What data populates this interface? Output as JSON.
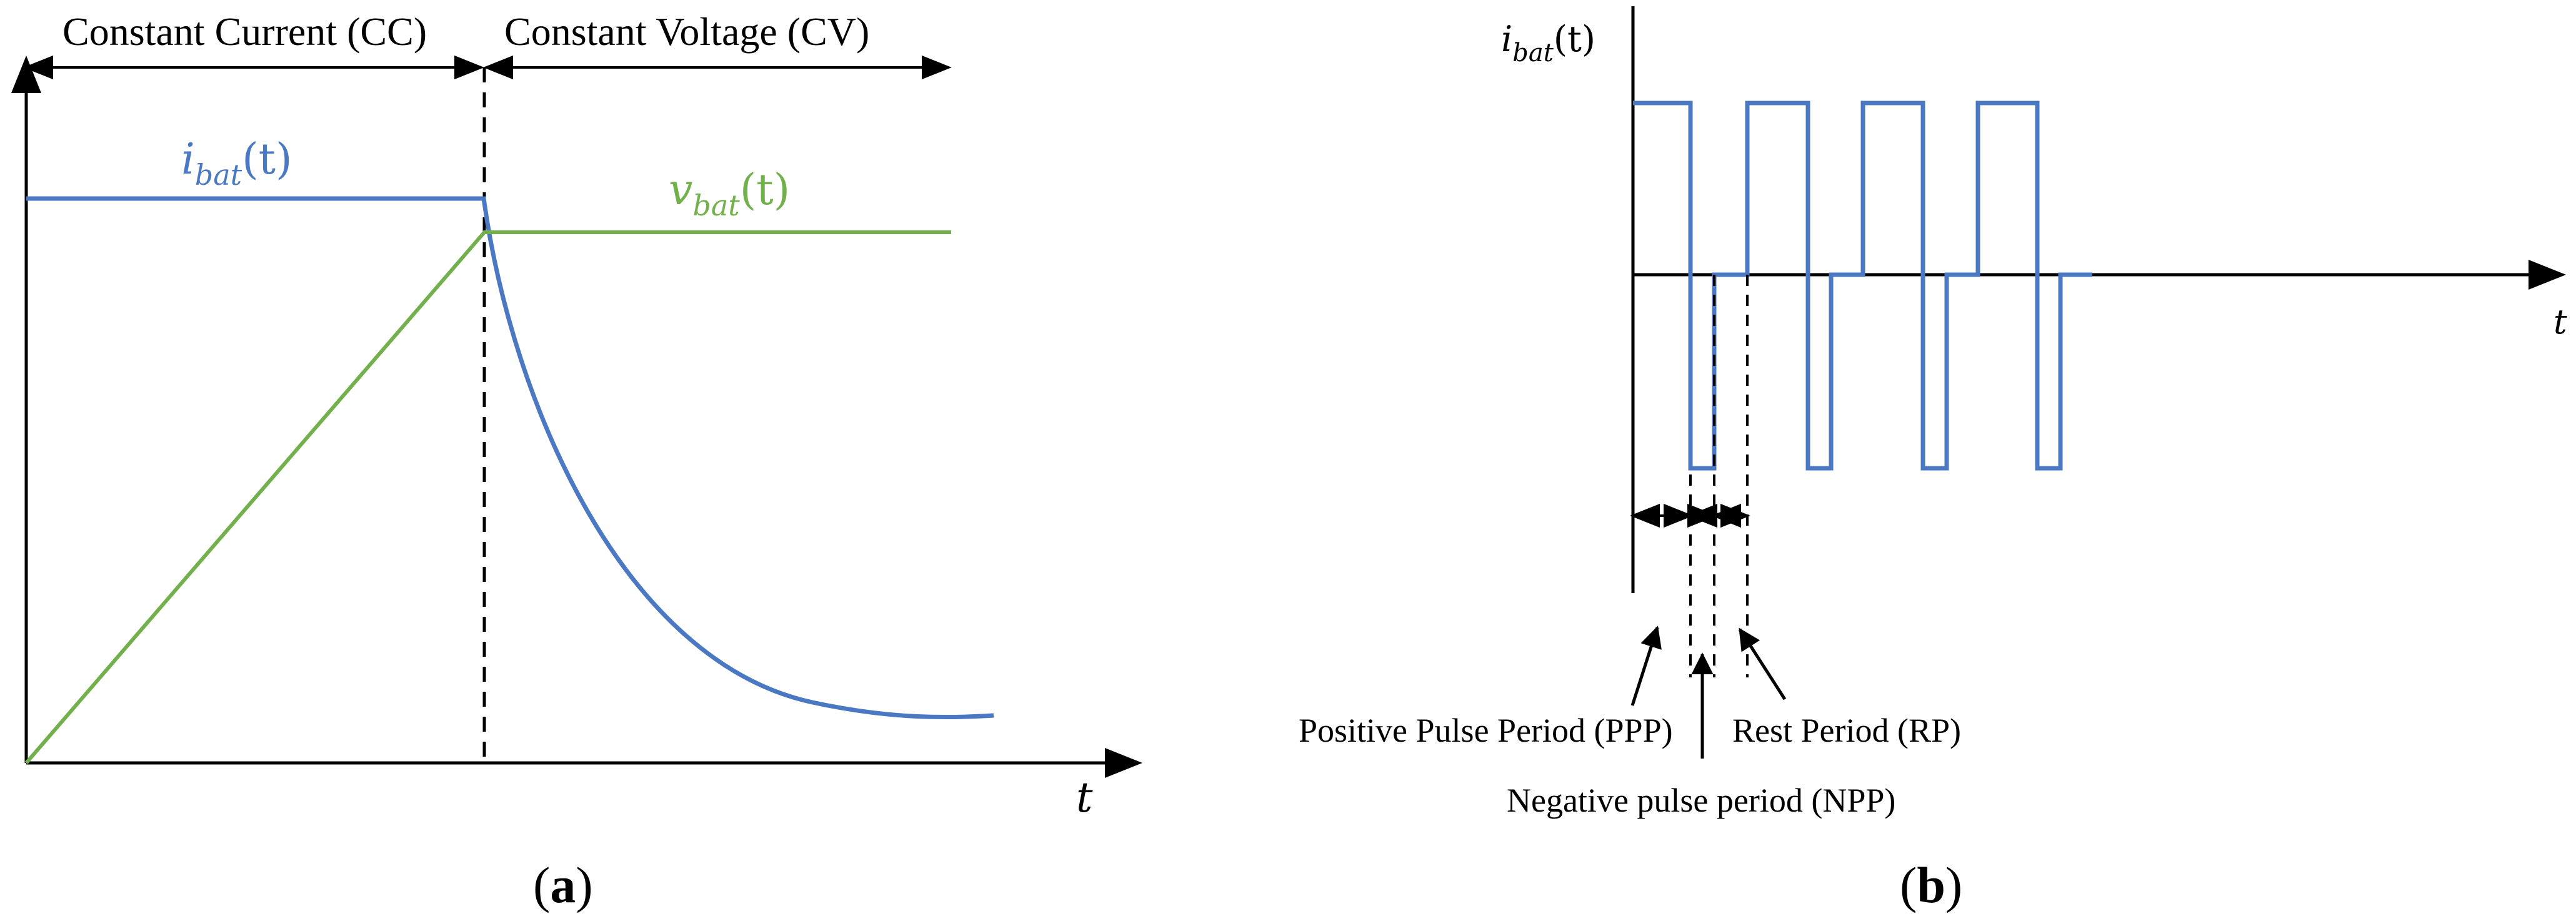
{
  "colors": {
    "current_trace": "#4a78c2",
    "voltage_trace": "#72b04c",
    "axis": "#000000",
    "background": "#ffffff"
  },
  "panel_a": {
    "regions": {
      "cc_label": "Constant Current (CC)",
      "cv_label": "Constant Voltage (CV)"
    },
    "current_label": {
      "symbol": "i",
      "subscript": "bat",
      "argument": "(t)"
    },
    "voltage_label": {
      "symbol": "v",
      "subscript": "bat",
      "argument": "(t)"
    },
    "time_axis_label": "t",
    "caption": {
      "open": "(",
      "letter": "a",
      "close": ")"
    },
    "waveforms": {
      "current": "constant during CC, exponential decay during CV",
      "voltage": "linear rise during CC, constant during CV"
    }
  },
  "panel_b": {
    "current_label": {
      "symbol": "i",
      "subscript": "bat",
      "argument": "(t)"
    },
    "time_axis_label": "t",
    "periods": {
      "positive": "Positive Pulse Period (PPP)",
      "negative": "Negative pulse period (NPP)",
      "rest": "Rest Period (RP)"
    },
    "caption": {
      "open": "(",
      "letter": "b",
      "close": ")"
    },
    "pulse_cycle": [
      {
        "phase": "positive",
        "level": 1
      },
      {
        "phase": "negative",
        "level": -1
      },
      {
        "phase": "rest",
        "level": 0
      }
    ],
    "cycle_count": 4
  }
}
